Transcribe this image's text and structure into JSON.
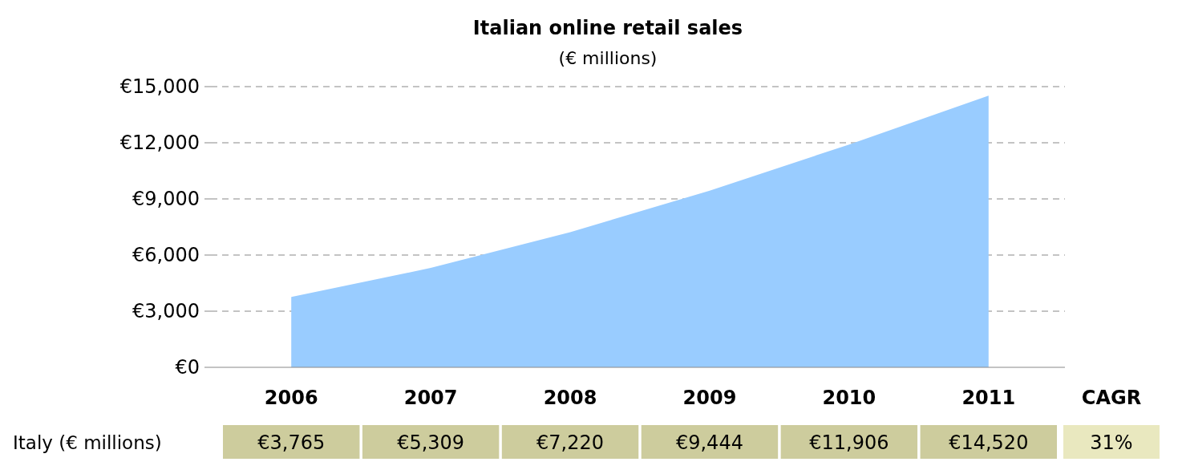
{
  "chart_data": {
    "type": "area",
    "title": "Italian online retail sales",
    "subtitle": "(€ millions)",
    "categories": [
      "2006",
      "2007",
      "2008",
      "2009",
      "2010",
      "2011"
    ],
    "series": [
      {
        "name": "Italy (€ millions)",
        "color": "#99ccff",
        "values": [
          3765,
          5309,
          7220,
          9444,
          11906,
          14520
        ],
        "value_labels": [
          "€3,765",
          "€5,309",
          "€7,220",
          "€9,444",
          "€11,906",
          "€14,520"
        ]
      }
    ],
    "ylim": [
      0,
      15000
    ],
    "yticks": [
      {
        "value": 0,
        "label": "€0"
      },
      {
        "value": 3000,
        "label": "€3,000"
      },
      {
        "value": 6000,
        "label": "€6,000"
      },
      {
        "value": 9000,
        "label": "€9,000"
      },
      {
        "value": 12000,
        "label": "€12,000"
      },
      {
        "value": 15000,
        "label": "€15,000"
      }
    ],
    "grid": "y",
    "annotations": [
      "CAGR",
      "31%"
    ]
  }
}
